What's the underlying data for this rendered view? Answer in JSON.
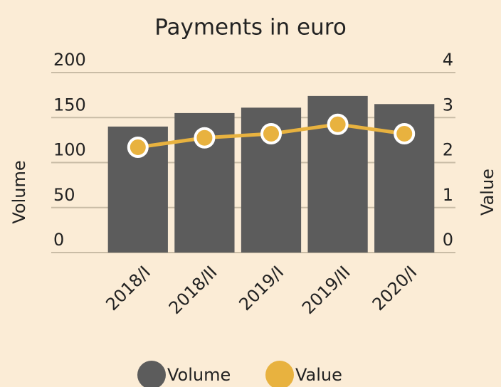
{
  "chart_data": {
    "type": "bar",
    "title": "Payments in euro",
    "categories": [
      "2018/I",
      "2018/II",
      "2019/I",
      "2019/II",
      "2020/I"
    ],
    "series": [
      {
        "name": "Volume",
        "color": "#5c5c5c",
        "type": "bar",
        "values": [
          140,
          155,
          161,
          174,
          165
        ]
      },
      {
        "name": "Value",
        "color": "#e8b23f",
        "type": "line",
        "axis": "y2",
        "values": [
          2.34,
          2.55,
          2.64,
          2.85,
          2.64
        ]
      }
    ],
    "ylabel": "Volume",
    "y2label": "Value",
    "ylim": [
      0,
      200
    ],
    "yticks": [
      0,
      50,
      100,
      150,
      200
    ],
    "y2lim": [
      0,
      4
    ],
    "y2ticks": [
      0,
      1,
      2,
      3,
      4
    ],
    "grid": true,
    "legend": "bottom"
  }
}
